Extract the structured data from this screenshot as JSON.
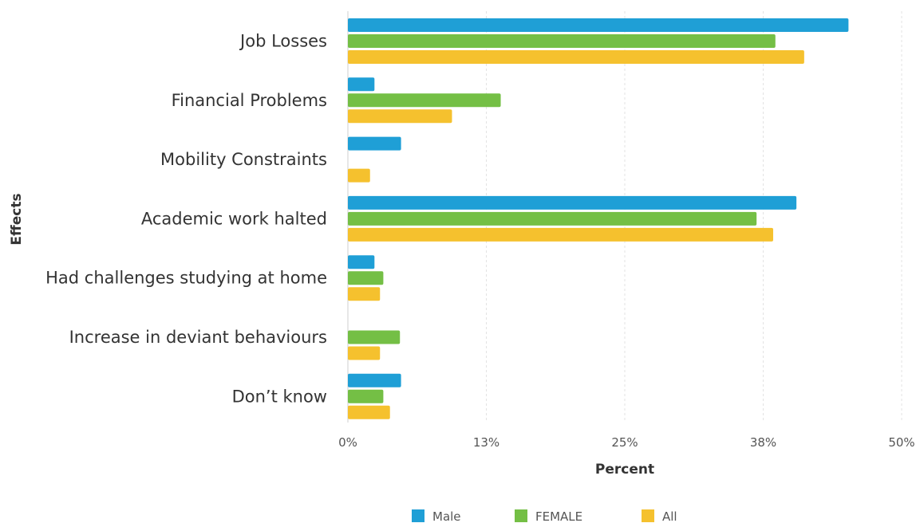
{
  "chart_data": {
    "type": "bar",
    "orientation": "horizontal",
    "categories": [
      "Job Losses",
      "Financial Problems",
      "Mobility Constraints",
      "Academic work halted",
      "Had challenges studying at home",
      "Increase in deviant behaviours",
      "Don’t know"
    ],
    "series": [
      {
        "name": "Male",
        "color": "#1f9fd6",
        "values": [
          45.2,
          2.4,
          4.8,
          40.5,
          2.4,
          0,
          4.8
        ]
      },
      {
        "name": "FEMALE",
        "color": "#74bf45",
        "values": [
          38.6,
          13.8,
          0,
          36.9,
          3.2,
          4.7,
          3.2
        ]
      },
      {
        "name": "All",
        "color": "#f5c12e",
        "values": [
          41.2,
          9.4,
          2.0,
          38.4,
          2.9,
          2.9,
          3.8
        ]
      }
    ],
    "xlabel": "Percent",
    "ylabel": "Effects",
    "xlim": [
      0,
      50
    ],
    "ticks": [
      0,
      12.5,
      25,
      37.5,
      50
    ],
    "tick_labels": [
      "0%",
      "13%",
      "25%",
      "38%",
      "50%"
    ],
    "grid": true,
    "legend_position": "bottom"
  }
}
